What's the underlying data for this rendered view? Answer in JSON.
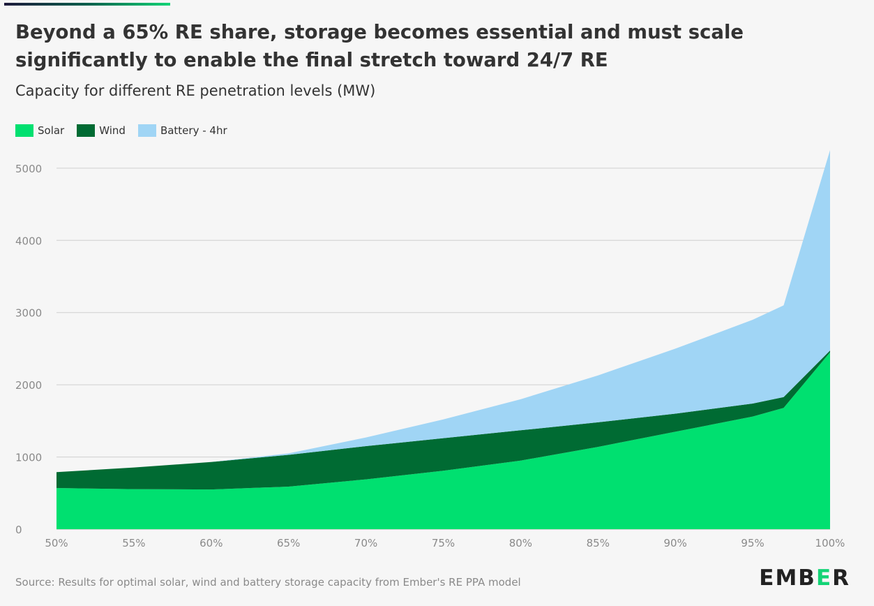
{
  "header": {
    "title": "Beyond a 65% RE share, storage becomes essential and must scale significantly to enable the final stretch toward 24/7 RE",
    "subtitle": "Capacity for different RE penetration levels (MW)"
  },
  "legend": [
    {
      "label": "Solar",
      "color": "#00e070"
    },
    {
      "label": "Wind",
      "color": "#006b33"
    },
    {
      "label": "Battery - 4hr",
      "color": "#a0d5f5"
    }
  ],
  "footer": {
    "source": "Source: Results for optimal solar, wind and battery storage capacity from Ember's RE PPA model",
    "logo_prefix": "EMB",
    "logo_mark": "E",
    "logo_suffix": "R"
  },
  "chart_data": {
    "type": "area",
    "stacked": true,
    "x": [
      50,
      55,
      60,
      65,
      70,
      75,
      80,
      85,
      90,
      95,
      97,
      100
    ],
    "x_ticks": [
      50,
      55,
      60,
      65,
      70,
      75,
      80,
      85,
      90,
      95,
      100
    ],
    "x_tick_labels": [
      "50%",
      "55%",
      "60%",
      "65%",
      "70%",
      "75%",
      "80%",
      "85%",
      "90%",
      "95%",
      "100%"
    ],
    "y_ticks": [
      0,
      1000,
      2000,
      3000,
      4000,
      5000
    ],
    "y_tick_labels": [
      "0",
      "1000",
      "2000",
      "3000",
      "4000",
      "5000"
    ],
    "ylim": [
      0,
      5250
    ],
    "xlim": [
      50,
      100
    ],
    "grid": true,
    "legend_position": "top-left",
    "series": [
      {
        "name": "Solar",
        "color": "#00e070",
        "values": [
          570,
          555,
          550,
          590,
          690,
          810,
          950,
          1140,
          1350,
          1560,
          1680,
          2450
        ]
      },
      {
        "name": "Wind",
        "color": "#006b33",
        "values": [
          220,
          300,
          380,
          440,
          460,
          450,
          420,
          340,
          250,
          180,
          150,
          25
        ]
      },
      {
        "name": "Battery - 4hr",
        "color": "#a0d5f5",
        "values": [
          0,
          0,
          0,
          20,
          120,
          260,
          430,
          650,
          900,
          1160,
          1270,
          2775
        ]
      }
    ]
  }
}
